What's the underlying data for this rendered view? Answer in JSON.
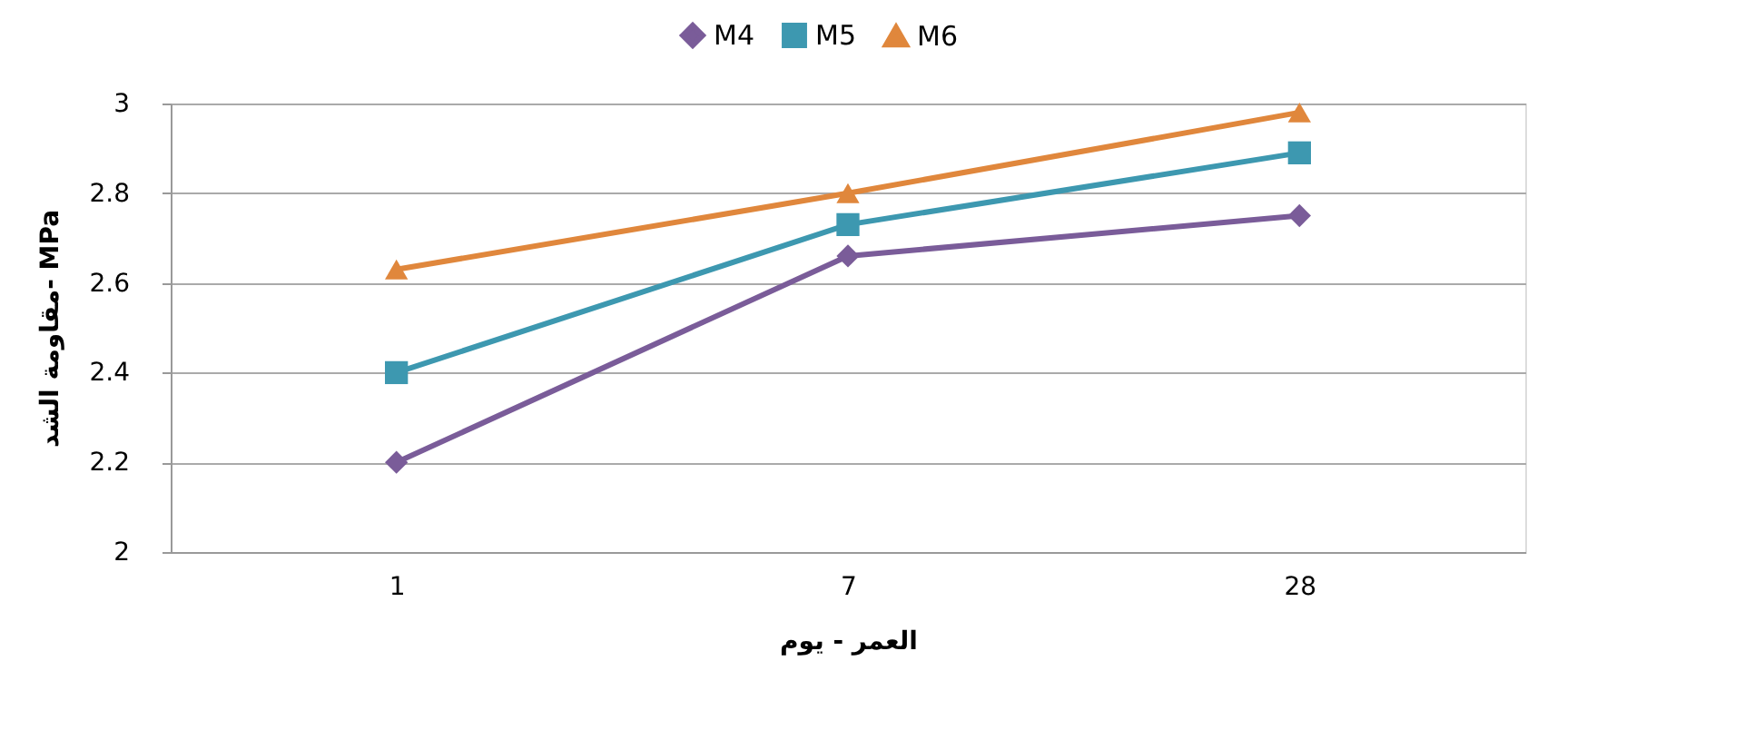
{
  "chart_data": {
    "type": "line",
    "xlabel": "العمر - يوم",
    "ylabel": "مقاومة الشد- MPa",
    "categories": [
      "1",
      "7",
      "28"
    ],
    "series": [
      {
        "name": "M4",
        "color": "#7a5c99",
        "marker": "diamond",
        "values": [
          2.2,
          2.66,
          2.75
        ]
      },
      {
        "name": "M5",
        "color": "#3d98b0",
        "marker": "square",
        "values": [
          2.4,
          2.73,
          2.89
        ]
      },
      {
        "name": "M6",
        "color": "#e0873c",
        "marker": "triangle",
        "values": [
          2.63,
          2.8,
          2.98
        ]
      }
    ],
    "ylim": [
      2,
      3
    ],
    "yticks": [
      2,
      2.2,
      2.4,
      2.6,
      2.8,
      3
    ],
    "grid": "y",
    "legend": "top",
    "line_style": "solid"
  }
}
